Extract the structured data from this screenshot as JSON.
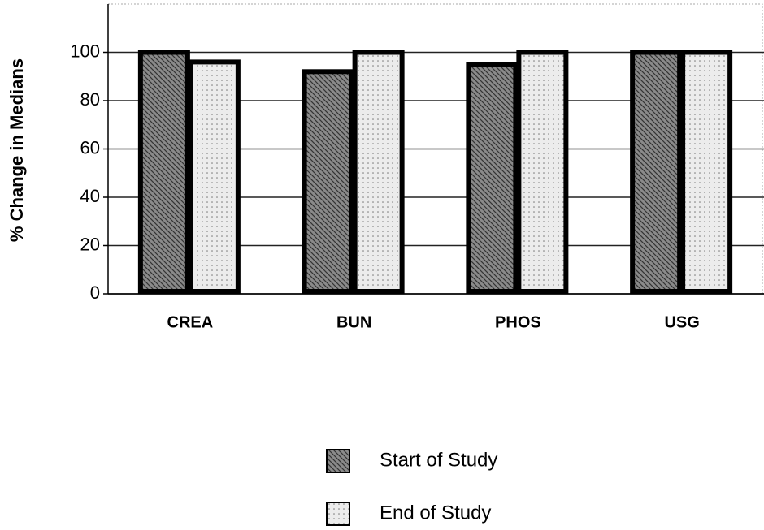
{
  "chart_data": {
    "type": "bar",
    "y_label": "% Change in Medians",
    "categories": [
      "CREA",
      "BUN",
      "PHOS",
      "USG"
    ],
    "series": [
      {
        "name": "Start of Study",
        "color": "#8a8a8a",
        "values": [
          100,
          92,
          95,
          100
        ]
      },
      {
        "name": "End of Study",
        "color": "#ececec",
        "values": [
          96,
          100,
          100,
          100
        ]
      }
    ],
    "ylim": [
      0,
      120
    ],
    "yticks": [
      0,
      20,
      40,
      60,
      80,
      100
    ],
    "grid": true
  }
}
